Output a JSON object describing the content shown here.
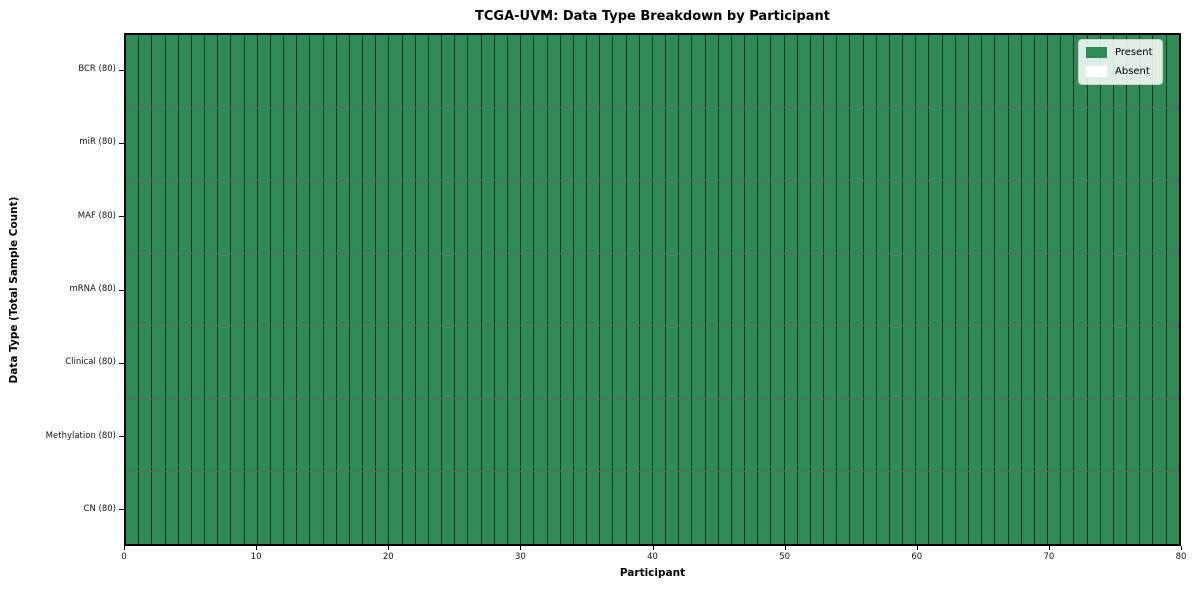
{
  "chart_data": {
    "type": "heatmap",
    "title": "TCGA-UVM: Data Type Breakdown by Participant",
    "xlabel": "Participant",
    "ylabel": "Data Type (Total Sample Count)",
    "n_participants": 80,
    "x_ticks": [
      0,
      10,
      20,
      30,
      40,
      50,
      60,
      70,
      80
    ],
    "xlim": [
      0,
      80
    ],
    "grid": "cell-borders",
    "legend_position": "upper-right",
    "rows": [
      {
        "label": "BCR (80)",
        "present_count": 80,
        "absent_count": 0
      },
      {
        "label": "miR (80)",
        "present_count": 80,
        "absent_count": 0
      },
      {
        "label": "MAF (80)",
        "present_count": 80,
        "absent_count": 0
      },
      {
        "label": "mRNA (80)",
        "present_count": 80,
        "absent_count": 0
      },
      {
        "label": "Clinical (80)",
        "present_count": 80,
        "absent_count": 0
      },
      {
        "label": "Methylation (80)",
        "present_count": 80,
        "absent_count": 0
      },
      {
        "label": "CN (80)",
        "present_count": 80,
        "absent_count": 0
      }
    ],
    "legend": [
      {
        "label": "Present",
        "color": "#2e8b57"
      },
      {
        "label": "Absent",
        "color": "#ffffff"
      }
    ],
    "colors": {
      "present": "#2e8b57",
      "absent": "#ffffff",
      "cell_border": "rgba(0,0,0,0.6)",
      "spine": "#000000"
    }
  }
}
